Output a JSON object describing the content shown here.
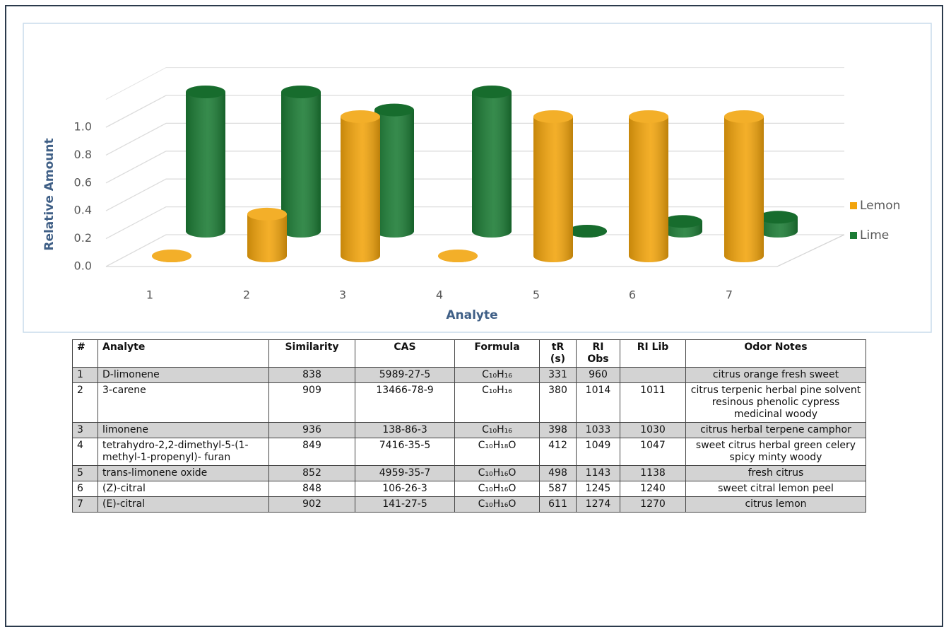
{
  "chart_data": {
    "type": "bar",
    "y_label": "Relative Amount",
    "x_label": "Analyte",
    "categories": [
      "1",
      "2",
      "3",
      "4",
      "5",
      "6",
      "7"
    ],
    "series": [
      {
        "name": "Lemon",
        "color": "#f2a40c",
        "values": [
          0,
          0.3,
          1.0,
          0,
          1.0,
          1.0,
          1.0
        ]
      },
      {
        "name": "Lime",
        "color": "#1b7b34",
        "values": [
          1.0,
          1.0,
          0.87,
          1.0,
          0,
          0.07,
          0.1
        ]
      }
    ],
    "ylim": [
      0,
      1.2
    ],
    "yticks": [
      {
        "value": 0,
        "label": "0.0"
      },
      {
        "value": 0.2,
        "label": "0.2"
      },
      {
        "value": 0.4,
        "label": "0.4"
      },
      {
        "value": 0.6,
        "label": "0.6"
      },
      {
        "value": 0.8,
        "label": "0.8"
      },
      {
        "value": 1.0,
        "label": "1.0"
      }
    ],
    "grid": true,
    "legend": "right"
  },
  "table": {
    "header": [
      "#",
      "Analyte",
      "Similarity",
      "CAS",
      "Formula",
      "tR (s)",
      "RI Obs",
      "RI Lib",
      "Odor Notes"
    ],
    "rows": [
      [
        1,
        "D-limonene",
        838,
        "5989-27-5",
        "C₁₀H₁₆",
        331,
        960,
        null,
        "citrus orange fresh sweet"
      ],
      [
        2,
        "3-carene",
        909,
        "13466-78-9",
        "C₁₀H₁₆",
        380,
        1014,
        1011,
        "citrus terpenic herbal pine solvent resinous phenolic cypress medicinal woody"
      ],
      [
        3,
        "limonene",
        936,
        "138-86-3",
        "C₁₀H₁₆",
        398,
        1033,
        1030,
        "citrus herbal terpene camphor"
      ],
      [
        4,
        "tetrahydro-2,2-dimethyl-5-(1-methyl-1-propenyl)- furan",
        849,
        "7416-35-5",
        "C₁₀H₁₈O",
        412,
        1049,
        1047,
        "sweet citrus herbal green celery spicy minty woody"
      ],
      [
        5,
        "trans-limonene oxide",
        852,
        "4959-35-7",
        "C₁₀H₁₆O",
        498,
        1143,
        1138,
        "fresh citrus"
      ],
      [
        6,
        "(Z)-citral",
        848,
        "106-26-3",
        "C₁₀H₁₆O",
        587,
        1245,
        1240,
        "sweet citral lemon peel"
      ],
      [
        7,
        "(E)-citral",
        902,
        "141-27-5",
        "C₁₀H₁₆O",
        611,
        1274,
        1270,
        "citrus lemon"
      ]
    ]
  }
}
